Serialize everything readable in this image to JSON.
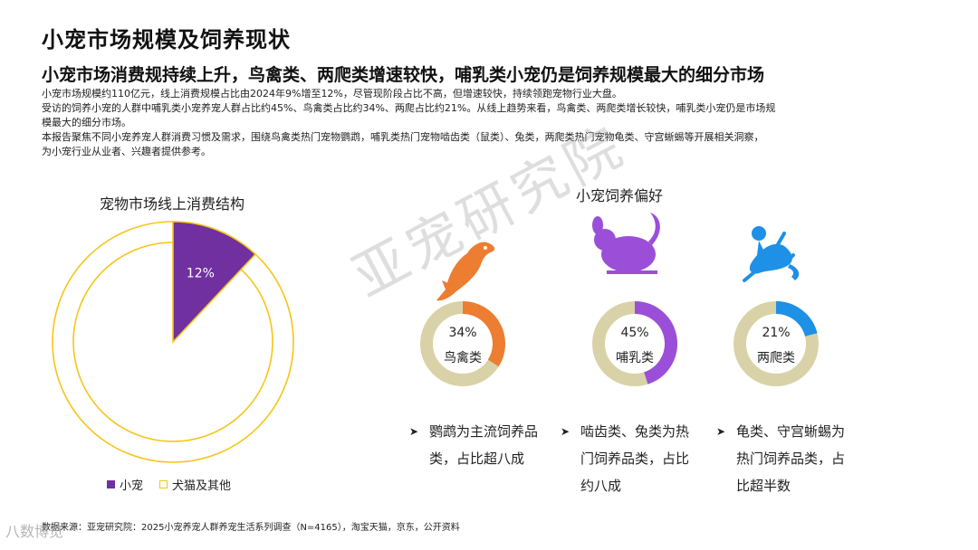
{
  "title": "小宠市场规模及饲养现状",
  "subtitle": "小宠市场消费规持续上升，鸟禽类、两爬类增速较快，哺乳类小宠仍是饲养规模最大的细分市场",
  "description": [
    "小宠市场规模约110亿元，线上消费规模占比由2024年9%增至12%，尽管现阶段占比不高，但增速较快，持续领跑宠物行业大盘。",
    "受访的饲养小宠的人群中哺乳类小宠养宠人群占比约45%、鸟禽类占比约34%、两爬占比约21%。从线上趋势来看，鸟禽类、两爬类增长较快，哺乳类小宠仍是市场规",
    "模最大的细分市场。",
    "本报告聚焦不同小宠养宠人群消费习惯及需求，围绕鸟禽类热门宠物鹦鹉，哺乳类热门宠物啮齿类（鼠类）、兔类，两爬类热门宠物龟类、守宫蜥蜴等开展相关洞察，",
    "为小宠行业从业者、兴趣者提供参考。"
  ],
  "watermark": "亚宠研究院",
  "logo_text": "八数博览",
  "source": "数据来源：亚宠研究院：2025小宠养宠人群养宠生活系列调查（N=4165），淘宝天猫，京东，公开资料",
  "bullets": [
    "鹦鹉为主流饲养品类，占比超八成",
    "啮齿类、兔类为热门饲养品类，占比约八成",
    "龟类、守宫蜥蜴为热门饲养品类，占比超半数"
  ],
  "chart_data": [
    {
      "type": "pie",
      "title": "宠物市场线上消费结构",
      "slices": [
        {
          "name": "小宠",
          "value": 12,
          "label": "12%",
          "color": "#7030A0"
        },
        {
          "name": "犬猫及其他",
          "value": 88,
          "label": "",
          "color": "#F5C518"
        }
      ],
      "legend": "bottom"
    },
    {
      "type": "pie",
      "title": "小宠饲养偏好",
      "donuts": [
        {
          "name": "鸟禽类",
          "value": 34,
          "label": "34%",
          "color": "#ED7D31",
          "icon": "bird-icon"
        },
        {
          "name": "哺乳类",
          "value": 45,
          "label": "45%",
          "color": "#9B4FD8",
          "icon": "chinchilla-icon"
        },
        {
          "name": "两爬类",
          "value": 21,
          "label": "21%",
          "color": "#1E90E6",
          "icon": "lizard-icon"
        }
      ],
      "remainder_color": "#D9D2A8"
    }
  ]
}
